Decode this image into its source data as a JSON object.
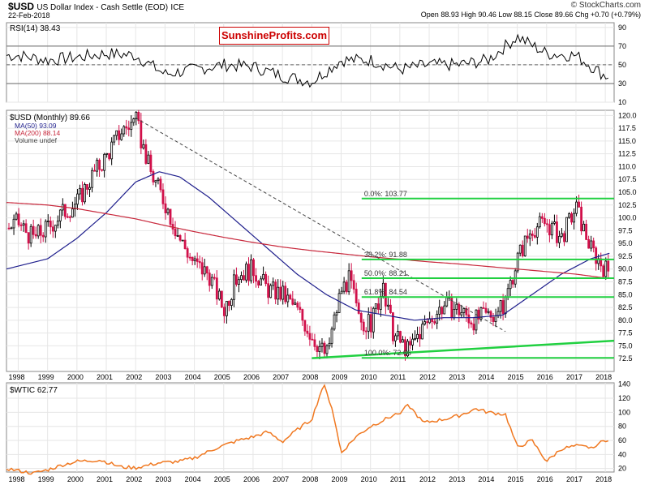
{
  "header": {
    "symbol": "$USD",
    "description": "US Dollar Index - Cash Settle (EOD)",
    "exchange": "ICE",
    "date": "22-Feb-2018",
    "brand": "© StockCharts.com",
    "quote": "Open 88.93  High 90.46  Low 88.15  Close 89.66  Chg +0.70 (+0.79%)"
  },
  "watermark": "SunshineProfits.com",
  "colors": {
    "price_up": "#000000",
    "price_down": "#d1104a",
    "ma50": "#1e1e8c",
    "ma200": "#c8283c",
    "fib": "#20d040",
    "trend": "#444444",
    "wtic": "#f07820",
    "rsi": "#000000"
  },
  "chart_data": [
    {
      "type": "line",
      "panel": "rsi",
      "legend": "RSI(14) 38.43",
      "ylim": [
        10,
        95
      ],
      "yticks": [
        "90",
        "70",
        "50",
        "30",
        "10"
      ],
      "reference_lines": [
        70,
        50,
        30
      ],
      "x": [
        1998,
        1999,
        2000,
        2001,
        2002,
        2003,
        2004,
        2005,
        2006,
        2007,
        2008,
        2009,
        2010,
        2011,
        2012,
        2013,
        2014,
        2015,
        2016,
        2017,
        2018
      ],
      "values": [
        60,
        55,
        58,
        62,
        60,
        40,
        45,
        50,
        48,
        38,
        32,
        55,
        55,
        45,
        50,
        50,
        55,
        80,
        62,
        60,
        38
      ]
    },
    {
      "type": "line",
      "panel": "usd",
      "title": "$USD (Monthly) 89.66",
      "legend": [
        "$USD (Monthly) 89.66",
        "MA(50) 93.09",
        "MA(200) 88.14",
        "Volume undef"
      ],
      "ylim": [
        70,
        121
      ],
      "yticks": [
        "120.0",
        "117.5",
        "115.0",
        "112.5",
        "110.0",
        "107.5",
        "105.0",
        "102.5",
        "100.0",
        "97.5",
        "95.0",
        "92.5",
        "90.0",
        "87.5",
        "85.0",
        "82.5",
        "80.0",
        "77.5",
        "75.0",
        "72.5"
      ],
      "xticks": [
        "1998",
        "1999",
        "2000",
        "2001",
        "2002",
        "2003",
        "2004",
        "2005",
        "2006",
        "2007",
        "2008",
        "2009",
        "2010",
        "2011",
        "2012",
        "2013",
        "2014",
        "2015",
        "2016",
        "2017",
        "2018"
      ],
      "series": [
        {
          "name": "$USD (Monthly) 89.66",
          "x": [
            1997.6,
            1998.0,
            1998.5,
            1999.0,
            1999.5,
            2000.0,
            2000.5,
            2001.0,
            2001.5,
            2002.0,
            2002.5,
            2003.0,
            2003.5,
            2004.0,
            2004.5,
            2005.0,
            2005.5,
            2006.0,
            2006.5,
            2007.0,
            2007.5,
            2008.0,
            2008.5,
            2009.0,
            2009.3,
            2009.6,
            2010.0,
            2010.4,
            2010.8,
            2011.3,
            2011.7,
            2012.0,
            2012.5,
            2013.0,
            2013.5,
            2014.0,
            2014.5,
            2015.0,
            2015.5,
            2016.0,
            2016.5,
            2017.0,
            2017.5,
            2018.0,
            2018.15
          ],
          "values": [
            98,
            99,
            96,
            98,
            101,
            103,
            108,
            112,
            117,
            119,
            109,
            103,
            96,
            91,
            89,
            82,
            89,
            90,
            86,
            85,
            82,
            77,
            73,
            86,
            88,
            80,
            79,
            86,
            77,
            74,
            78,
            80,
            83,
            82,
            80,
            81,
            82,
            92,
            98,
            99,
            96,
            102,
            94,
            90,
            89.66
          ]
        },
        {
          "name": "MA(50) 93.09",
          "x": [
            1997.6,
            1999,
            2000,
            2001,
            2002,
            2002.8,
            2003.5,
            2004.5,
            2005.5,
            2006.5,
            2007.5,
            2008.5,
            2009.5,
            2010.5,
            2011.5,
            2012.5,
            2013.5,
            2014.5,
            2015.5,
            2016.5,
            2017.5,
            2018.15
          ],
          "values": [
            90,
            92,
            96,
            101,
            107,
            109,
            108,
            104,
            99,
            94,
            89,
            85,
            82,
            81,
            80,
            80.5,
            80.5,
            81,
            85,
            89,
            92,
            93.09
          ]
        },
        {
          "name": "MA(200) 88.14",
          "x": [
            1997.6,
            1999,
            2000,
            2001,
            2002,
            2003,
            2004,
            2005,
            2006,
            2007,
            2008,
            2009,
            2010,
            2011,
            2012,
            2013,
            2014,
            2015,
            2016,
            2017,
            2018.15
          ],
          "values": [
            103,
            102.5,
            101.8,
            100.8,
            99.8,
            98.5,
            97.3,
            96.2,
            95.2,
            94.3,
            93.6,
            93.0,
            92.4,
            91.9,
            91.4,
            91.0,
            90.5,
            90.0,
            89.5,
            89.0,
            88.14
          ]
        }
      ],
      "annotations": [
        {
          "text": "0.0%: 103.77",
          "value": 103.77
        },
        {
          "text": "38.2%: 91.88",
          "value": 91.88
        },
        {
          "text": "50.0%: 88.21",
          "value": 88.21
        },
        {
          "text": "61.8%: 84.54",
          "value": 84.54
        },
        {
          "text": "100.0%: 72.66",
          "value": 72.66
        }
      ]
    },
    {
      "type": "line",
      "panel": "wtic",
      "title": "$WTIC 62.77",
      "ylim": [
        15,
        142
      ],
      "yticks": [
        "140",
        "120",
        "100",
        "80",
        "60",
        "40",
        "20"
      ],
      "xticks": [
        "1998",
        "1999",
        "2000",
        "2001",
        "2002",
        "2003",
        "2004",
        "2005",
        "2006",
        "2007",
        "2008",
        "2009",
        "2010",
        "2011",
        "2012",
        "2013",
        "2014",
        "2015",
        "2016",
        "2017",
        "2018"
      ],
      "x": [
        1997.6,
        1998.5,
        1999.0,
        1999.5,
        2000.0,
        2000.8,
        2001.5,
        2002.0,
        2002.8,
        2003.5,
        2004.0,
        2004.8,
        2005.5,
        2006.0,
        2006.5,
        2007.0,
        2007.5,
        2008.0,
        2008.4,
        2008.7,
        2009.0,
        2009.5,
        2010.0,
        2011.0,
        2011.3,
        2011.8,
        2012.5,
        2013.0,
        2013.6,
        2014.0,
        2014.6,
        2015.0,
        2015.5,
        2016.0,
        2016.5,
        2017.0,
        2017.5,
        2018.0,
        2018.15
      ],
      "values": [
        20,
        13,
        18,
        25,
        30,
        32,
        22,
        21,
        28,
        30,
        35,
        50,
        60,
        65,
        72,
        58,
        75,
        90,
        140,
        105,
        42,
        65,
        80,
        100,
        110,
        85,
        90,
        95,
        105,
        100,
        97,
        50,
        60,
        30,
        48,
        52,
        50,
        60,
        62.77
      ]
    }
  ]
}
